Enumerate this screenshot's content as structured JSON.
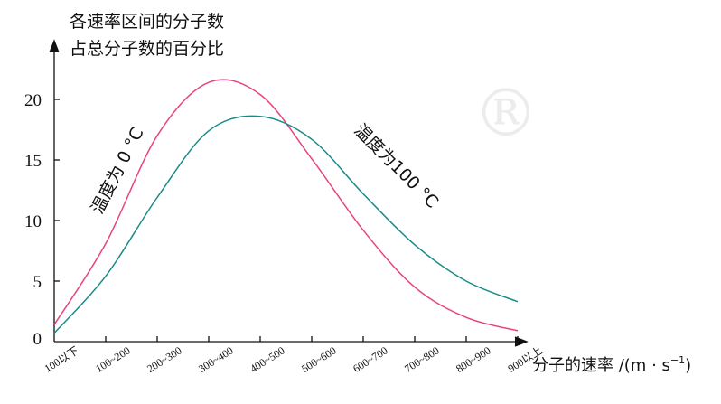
{
  "chart_data": {
    "type": "line",
    "ylabel_lines": [
      "各速率区间的分子数",
      "占总分子数的百分比"
    ],
    "xlabel": "分子的速率 /(m · s",
    "xlabel_sup": "−1",
    "xlabel_close": ")",
    "origin_label": "0",
    "categories": [
      "100以下",
      "100~200",
      "200~300",
      "300~400",
      "400~500",
      "500~600",
      "600~700",
      "700~800",
      "800~900",
      "900以上"
    ],
    "y_ticks": [
      5,
      10,
      15,
      20
    ],
    "ylim": [
      0,
      24
    ],
    "grid": false,
    "series": [
      {
        "name": "温度为 0 °C",
        "color": "#e8437d",
        "values": [
          1.4,
          8.1,
          17.0,
          21.4,
          20.4,
          15.1,
          9.2,
          4.5,
          2.0,
          0.9
        ]
      },
      {
        "name": "温度为100 °C",
        "color": "#1a8a8a",
        "values": [
          0.7,
          5.4,
          11.9,
          17.4,
          18.6,
          16.7,
          12.2,
          8.0,
          5.0,
          3.3
        ]
      }
    ],
    "watermark": "®"
  }
}
